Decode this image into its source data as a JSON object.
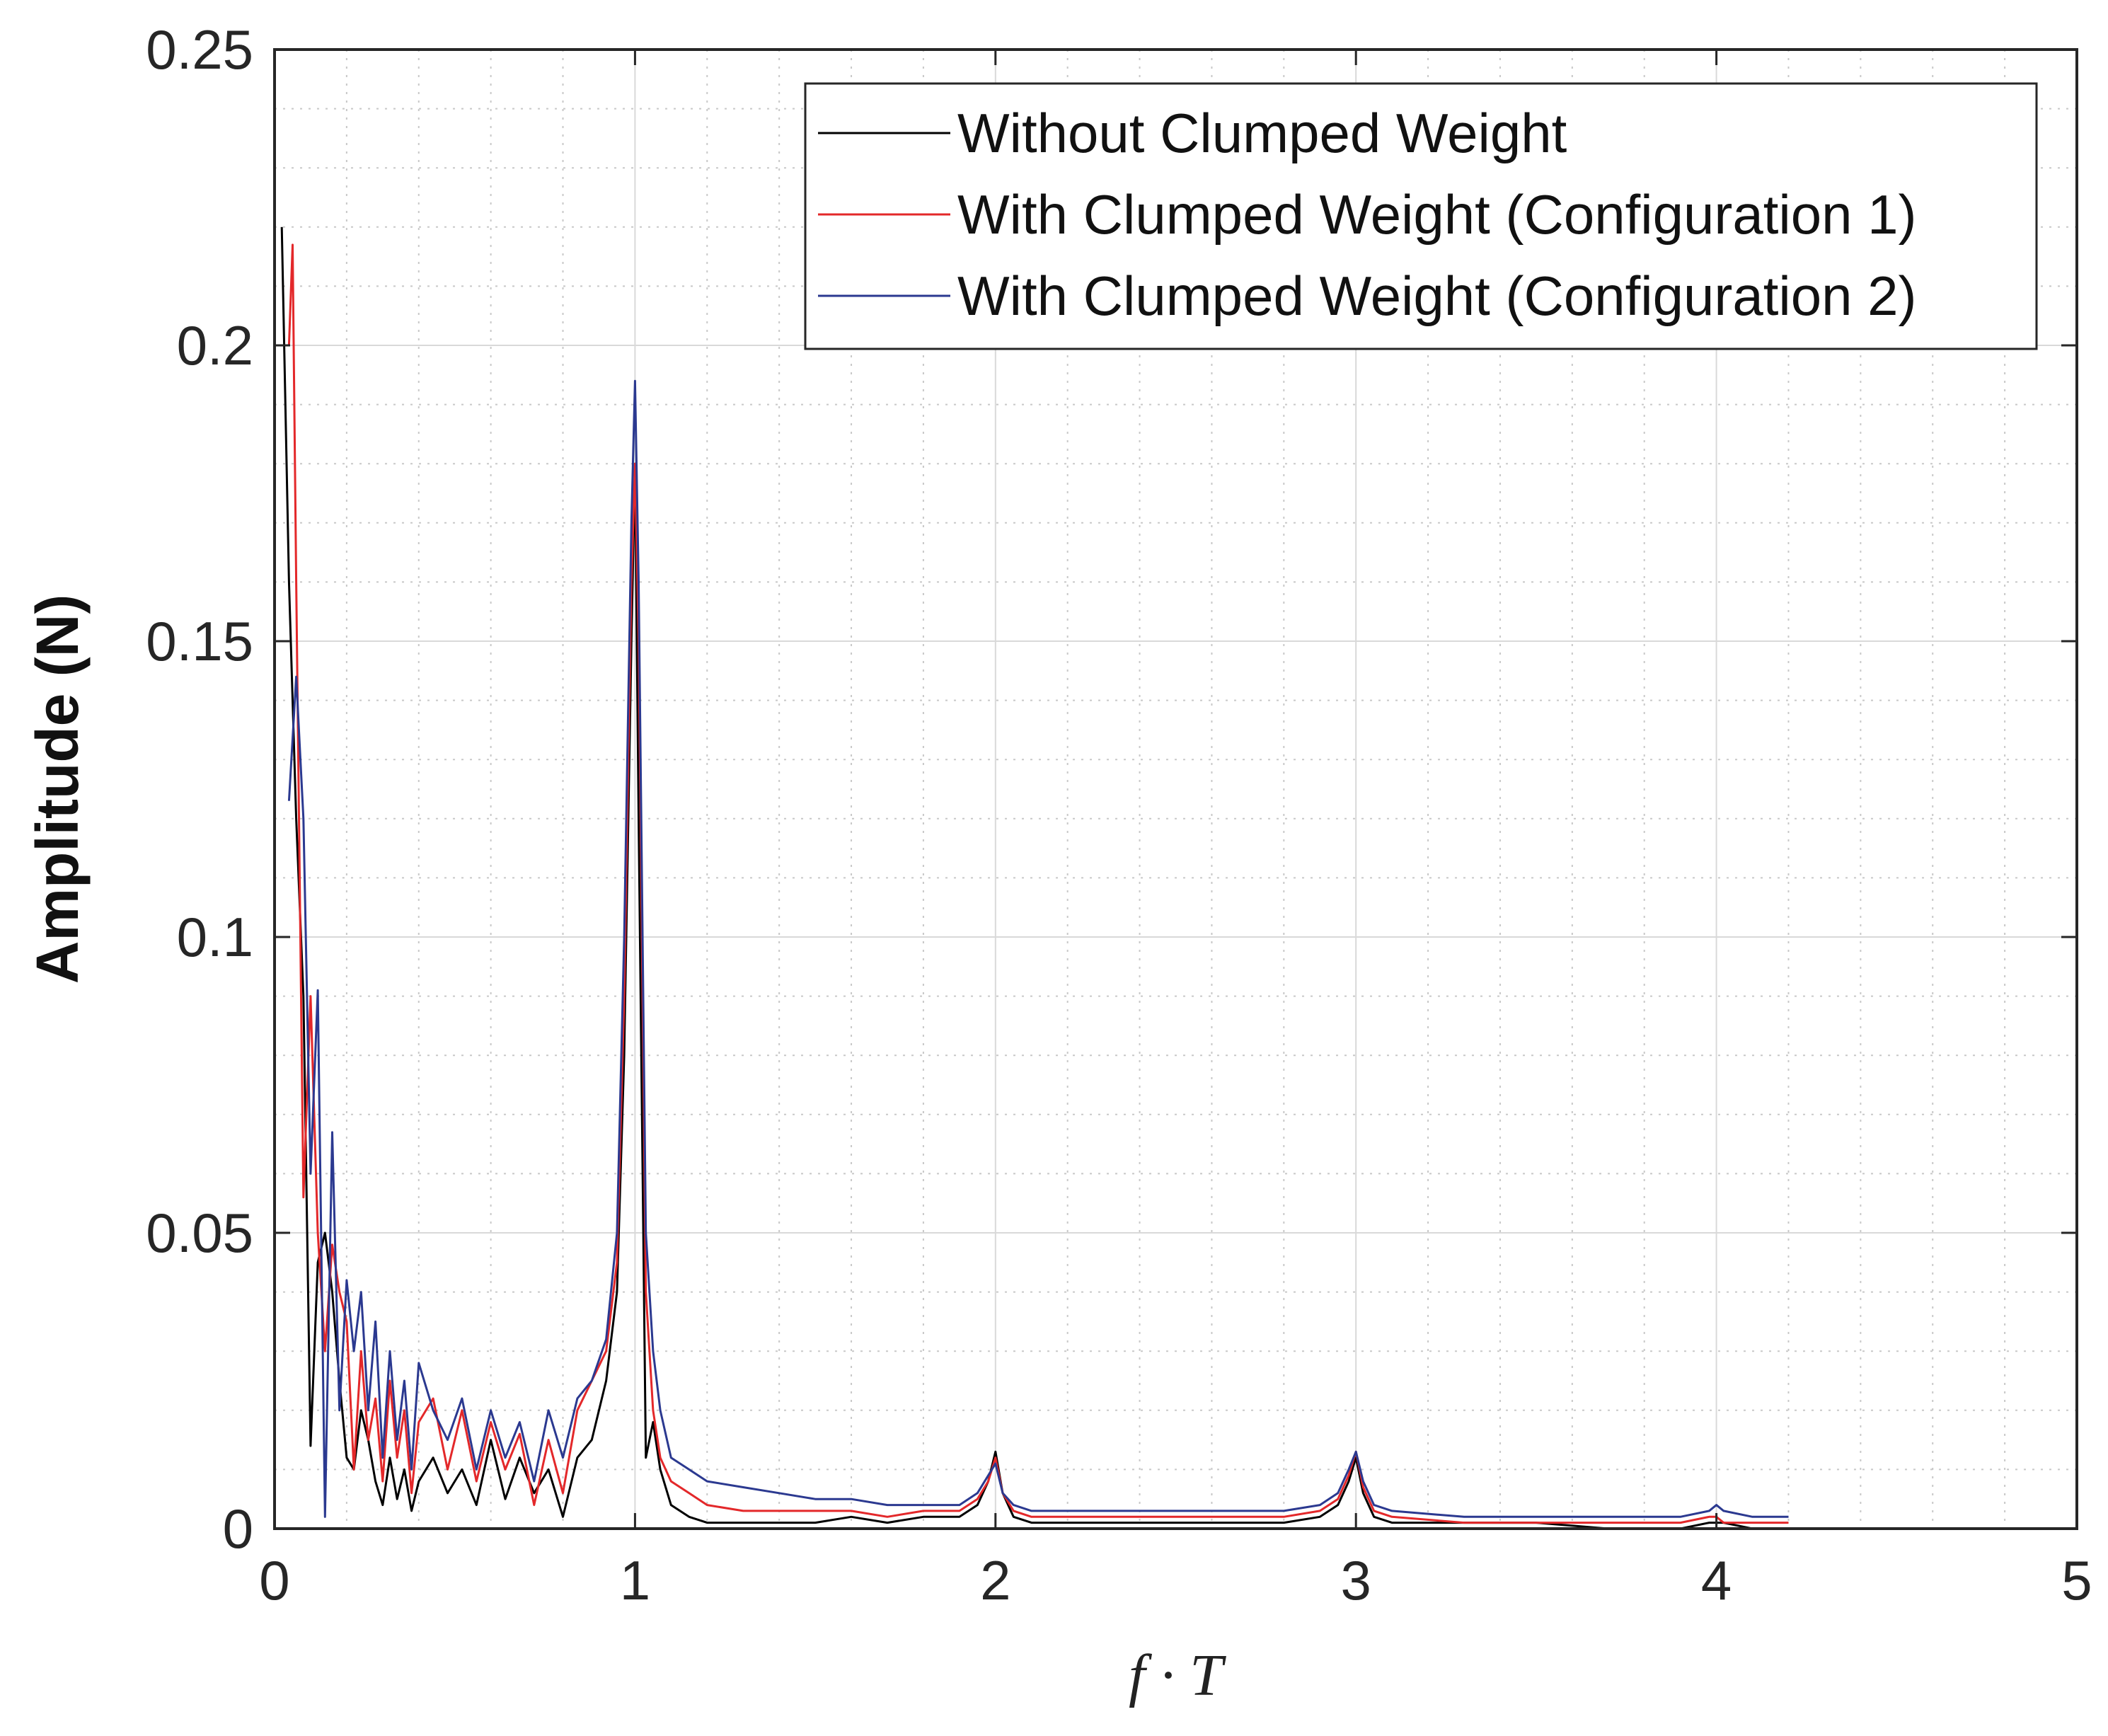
{
  "chart_data": {
    "type": "line",
    "title": "",
    "xlabel": "f · T",
    "ylabel": "Amplitude (N)",
    "xlim": [
      0,
      5
    ],
    "ylim": [
      0,
      0.25
    ],
    "x_ticks": [
      "0",
      "1",
      "2",
      "3",
      "4",
      "5"
    ],
    "y_ticks": [
      "0",
      "0.05",
      "0.1",
      "0.15",
      "0.2",
      "0.25"
    ],
    "grid": true,
    "legend_position": "top-right",
    "series": [
      {
        "name": "Without Clumped Weight",
        "color": "#000000",
        "x": [
          0.02,
          0.04,
          0.06,
          0.08,
          0.1,
          0.12,
          0.14,
          0.16,
          0.18,
          0.2,
          0.22,
          0.24,
          0.26,
          0.28,
          0.3,
          0.32,
          0.34,
          0.36,
          0.38,
          0.4,
          0.44,
          0.48,
          0.52,
          0.56,
          0.6,
          0.64,
          0.68,
          0.72,
          0.76,
          0.8,
          0.84,
          0.88,
          0.92,
          0.95,
          0.97,
          0.99,
          1.0,
          1.01,
          1.03,
          1.05,
          1.07,
          1.1,
          1.15,
          1.2,
          1.3,
          1.4,
          1.5,
          1.6,
          1.7,
          1.8,
          1.9,
          1.95,
          1.98,
          2.0,
          2.02,
          2.05,
          2.1,
          2.2,
          2.3,
          2.4,
          2.5,
          2.6,
          2.7,
          2.8,
          2.9,
          2.95,
          2.98,
          3.0,
          3.02,
          3.05,
          3.1,
          3.3,
          3.5,
          3.7,
          3.9,
          3.98,
          4.0,
          4.02,
          4.1,
          4.2
        ],
        "values": [
          0.22,
          0.16,
          0.12,
          0.09,
          0.014,
          0.045,
          0.05,
          0.04,
          0.025,
          0.012,
          0.01,
          0.02,
          0.015,
          0.008,
          0.004,
          0.012,
          0.005,
          0.01,
          0.003,
          0.008,
          0.012,
          0.006,
          0.01,
          0.004,
          0.015,
          0.005,
          0.012,
          0.006,
          0.01,
          0.002,
          0.012,
          0.015,
          0.025,
          0.04,
          0.08,
          0.15,
          0.18,
          0.12,
          0.012,
          0.018,
          0.01,
          0.004,
          0.002,
          0.001,
          0.001,
          0.001,
          0.001,
          0.002,
          0.001,
          0.002,
          0.002,
          0.004,
          0.008,
          0.013,
          0.006,
          0.002,
          0.001,
          0.001,
          0.001,
          0.001,
          0.001,
          0.001,
          0.001,
          0.001,
          0.002,
          0.004,
          0.008,
          0.012,
          0.006,
          0.002,
          0.001,
          0.001,
          0.001,
          0.0,
          0.0,
          0.001,
          0.001,
          0.001,
          0.0,
          0.0
        ]
      },
      {
        "name": "With Clumped Weight (Configuration 1)",
        "color": "#e3282a",
        "x": [
          0.04,
          0.05,
          0.06,
          0.08,
          0.1,
          0.12,
          0.14,
          0.16,
          0.18,
          0.2,
          0.22,
          0.24,
          0.26,
          0.28,
          0.3,
          0.32,
          0.34,
          0.36,
          0.38,
          0.4,
          0.44,
          0.48,
          0.52,
          0.56,
          0.6,
          0.64,
          0.68,
          0.72,
          0.76,
          0.8,
          0.84,
          0.88,
          0.92,
          0.95,
          0.97,
          0.99,
          1.0,
          1.01,
          1.03,
          1.05,
          1.07,
          1.1,
          1.15,
          1.2,
          1.3,
          1.4,
          1.5,
          1.6,
          1.7,
          1.8,
          1.9,
          1.95,
          1.98,
          2.0,
          2.02,
          2.05,
          2.1,
          2.2,
          2.3,
          2.4,
          2.5,
          2.6,
          2.7,
          2.8,
          2.9,
          2.95,
          2.98,
          3.0,
          3.02,
          3.05,
          3.1,
          3.3,
          3.5,
          3.7,
          3.9,
          3.98,
          4.0,
          4.02,
          4.1,
          4.2
        ],
        "values": [
          0.2,
          0.217,
          0.16,
          0.056,
          0.09,
          0.05,
          0.03,
          0.048,
          0.04,
          0.035,
          0.01,
          0.03,
          0.015,
          0.022,
          0.008,
          0.025,
          0.012,
          0.02,
          0.006,
          0.018,
          0.022,
          0.01,
          0.02,
          0.008,
          0.018,
          0.01,
          0.016,
          0.004,
          0.015,
          0.006,
          0.02,
          0.025,
          0.03,
          0.045,
          0.09,
          0.16,
          0.18,
          0.15,
          0.04,
          0.02,
          0.012,
          0.008,
          0.006,
          0.004,
          0.003,
          0.003,
          0.003,
          0.003,
          0.002,
          0.003,
          0.003,
          0.005,
          0.008,
          0.012,
          0.006,
          0.003,
          0.002,
          0.002,
          0.002,
          0.002,
          0.002,
          0.002,
          0.002,
          0.002,
          0.003,
          0.005,
          0.009,
          0.013,
          0.007,
          0.003,
          0.002,
          0.001,
          0.001,
          0.001,
          0.001,
          0.002,
          0.002,
          0.001,
          0.001,
          0.001
        ]
      },
      {
        "name": "With Clumped Weight (Configuration 2)",
        "color": "#2b3990",
        "x": [
          0.04,
          0.06,
          0.08,
          0.1,
          0.12,
          0.14,
          0.16,
          0.18,
          0.2,
          0.22,
          0.24,
          0.26,
          0.28,
          0.3,
          0.32,
          0.34,
          0.36,
          0.38,
          0.4,
          0.44,
          0.48,
          0.52,
          0.56,
          0.6,
          0.64,
          0.68,
          0.72,
          0.76,
          0.8,
          0.84,
          0.88,
          0.92,
          0.95,
          0.97,
          0.99,
          1.0,
          1.01,
          1.03,
          1.05,
          1.07,
          1.1,
          1.15,
          1.2,
          1.3,
          1.4,
          1.5,
          1.6,
          1.7,
          1.8,
          1.9,
          1.95,
          1.98,
          2.0,
          2.02,
          2.05,
          2.1,
          2.2,
          2.3,
          2.4,
          2.5,
          2.6,
          2.7,
          2.8,
          2.9,
          2.95,
          2.98,
          3.0,
          3.02,
          3.05,
          3.1,
          3.3,
          3.5,
          3.7,
          3.9,
          3.98,
          4.0,
          4.02,
          4.1,
          4.2
        ],
        "values": [
          0.123,
          0.144,
          0.12,
          0.06,
          0.091,
          0.002,
          0.067,
          0.02,
          0.042,
          0.03,
          0.04,
          0.02,
          0.035,
          0.012,
          0.03,
          0.015,
          0.025,
          0.01,
          0.028,
          0.02,
          0.015,
          0.022,
          0.01,
          0.02,
          0.012,
          0.018,
          0.008,
          0.02,
          0.012,
          0.022,
          0.025,
          0.032,
          0.05,
          0.1,
          0.17,
          0.194,
          0.16,
          0.05,
          0.03,
          0.02,
          0.012,
          0.01,
          0.008,
          0.007,
          0.006,
          0.005,
          0.005,
          0.004,
          0.004,
          0.004,
          0.006,
          0.009,
          0.011,
          0.006,
          0.004,
          0.003,
          0.003,
          0.003,
          0.003,
          0.003,
          0.003,
          0.003,
          0.003,
          0.004,
          0.006,
          0.01,
          0.013,
          0.008,
          0.004,
          0.003,
          0.002,
          0.002,
          0.002,
          0.002,
          0.003,
          0.004,
          0.003,
          0.002,
          0.002
        ]
      }
    ]
  }
}
